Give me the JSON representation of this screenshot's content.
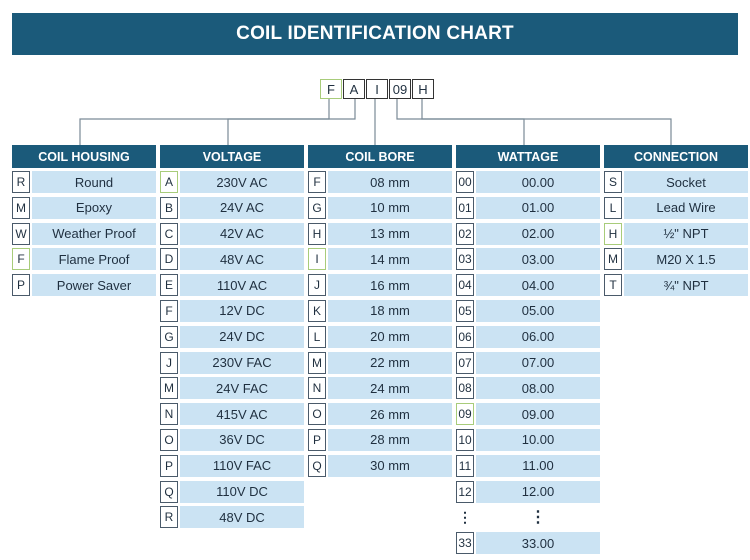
{
  "title": "COIL IDENTIFICATION CHART",
  "code": [
    "F",
    "A",
    "I",
    "09",
    "H"
  ],
  "columns": [
    {
      "header": "COIL HOUSING",
      "rows": [
        {
          "code": "R",
          "value": "Round"
        },
        {
          "code": "M",
          "value": "Epoxy"
        },
        {
          "code": "W",
          "value": "Weather Proof"
        },
        {
          "code": "F",
          "value": "Flame Proof",
          "highlight": true
        },
        {
          "code": "P",
          "value": "Power Saver"
        }
      ]
    },
    {
      "header": "VOLTAGE",
      "rows": [
        {
          "code": "A",
          "value": "230V AC",
          "highlight": true
        },
        {
          "code": "B",
          "value": "24V AC"
        },
        {
          "code": "C",
          "value": "42V AC"
        },
        {
          "code": "D",
          "value": "48V AC"
        },
        {
          "code": "E",
          "value": "110V AC"
        },
        {
          "code": "F",
          "value": "12V DC"
        },
        {
          "code": "G",
          "value": "24V DC"
        },
        {
          "code": "J",
          "value": "230V FAC"
        },
        {
          "code": "M",
          "value": "24V FAC"
        },
        {
          "code": "N",
          "value": "415V AC"
        },
        {
          "code": "O",
          "value": "36V DC"
        },
        {
          "code": "P",
          "value": "110V FAC"
        },
        {
          "code": "Q",
          "value": "110V DC"
        },
        {
          "code": "R",
          "value": "48V DC"
        }
      ]
    },
    {
      "header": "COIL BORE",
      "rows": [
        {
          "code": "F",
          "value": "08 mm"
        },
        {
          "code": "G",
          "value": "10 mm"
        },
        {
          "code": "H",
          "value": "13 mm"
        },
        {
          "code": "I",
          "value": "14 mm",
          "highlight": true
        },
        {
          "code": "J",
          "value": "16 mm"
        },
        {
          "code": "K",
          "value": "18 mm"
        },
        {
          "code": "L",
          "value": "20 mm"
        },
        {
          "code": "M",
          "value": "22 mm"
        },
        {
          "code": "N",
          "value": "24 mm"
        },
        {
          "code": "O",
          "value": "26 mm"
        },
        {
          "code": "P",
          "value": "28 mm"
        },
        {
          "code": "Q",
          "value": "30 mm"
        }
      ]
    },
    {
      "header": "WATTAGE",
      "rows": [
        {
          "code": "00",
          "value": "00.00"
        },
        {
          "code": "01",
          "value": "01.00"
        },
        {
          "code": "02",
          "value": "02.00"
        },
        {
          "code": "03",
          "value": "03.00"
        },
        {
          "code": "04",
          "value": "04.00"
        },
        {
          "code": "05",
          "value": "05.00"
        },
        {
          "code": "06",
          "value": "06.00"
        },
        {
          "code": "07",
          "value": "07.00"
        },
        {
          "code": "08",
          "value": "08.00"
        },
        {
          "code": "09",
          "value": "09.00",
          "highlight": true
        },
        {
          "code": "10",
          "value": "10.00"
        },
        {
          "code": "11",
          "value": "11.00"
        },
        {
          "code": "12",
          "value": "12.00"
        },
        {
          "code": "⋮",
          "value": "⋮",
          "dots": true
        },
        {
          "code": "33",
          "value": "33.00"
        }
      ]
    },
    {
      "header": "CONNECTION",
      "rows": [
        {
          "code": "S",
          "value": "Socket"
        },
        {
          "code": "L",
          "value": "Lead Wire"
        },
        {
          "code": "H",
          "value": "½\" NPT",
          "highlight": true
        },
        {
          "code": "M",
          "value": "M20 X 1.5"
        },
        {
          "code": "T",
          "value": "¾\" NPT"
        }
      ]
    }
  ]
}
